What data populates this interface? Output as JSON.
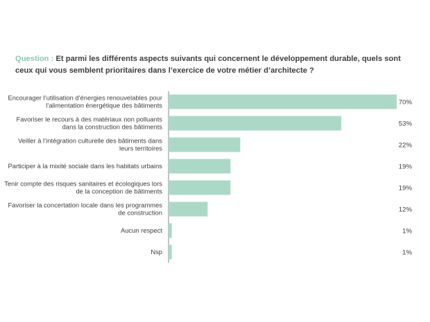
{
  "question": {
    "label": "Question :",
    "text": "Et parmi les différents aspects suivants qui concernent le développement durable, quels sont ceux qui vous semblent prioritaires dans l’exercice de votre métier d’architecte ?"
  },
  "colors": {
    "bar": "#acd9c7",
    "axis": "#8a8a8a",
    "accent": "#8cc6b1"
  },
  "chart_data": {
    "type": "bar",
    "orientation": "horizontal",
    "categories": [
      [
        "Encourager l’utilisation d’énergies renouvelables pour",
        "l’alimentation énergétique des bâtiments"
      ],
      [
        "Favoriser le recours à des matériaux non polluants",
        "dans la construction des bâtiments"
      ],
      [
        "Veiller à l’intégration culturelle des bâtiments dans",
        "leurs territoires"
      ],
      [
        "Participer à la mixité sociale dans les habitats urbains"
      ],
      [
        "Tenir compte des risques sanitaires et écologiques lors",
        "de la conception de bâtiments"
      ],
      [
        "Favoriser la concertation locale dans les programmes",
        "de construction"
      ],
      [
        "Aucun respect"
      ],
      [
        "Nsp"
      ]
    ],
    "values": [
      70,
      53,
      22,
      19,
      19,
      12,
      1,
      1
    ],
    "value_labels": [
      "70%",
      "53%",
      "22%",
      "19%",
      "19%",
      "12%",
      "1%",
      "1%"
    ],
    "unit": "%",
    "xlim": [
      0,
      70
    ],
    "grid": false,
    "legend": "none"
  }
}
